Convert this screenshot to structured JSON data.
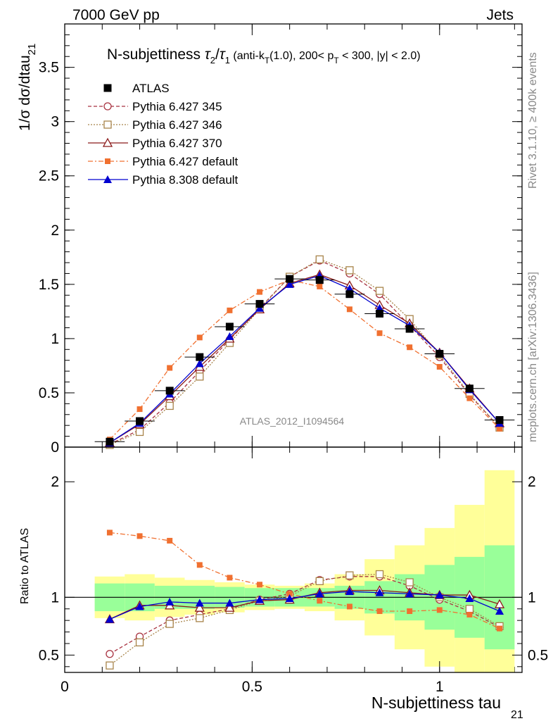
{
  "header": {
    "left": "7000 GeV pp",
    "right": "Jets"
  },
  "side": {
    "rivet": "Rivet 3.1.10, ≥ 400k events",
    "mcplots": "mcplots.cern.ch [arXiv:1306.3436]"
  },
  "watermark": "ATLAS_2012_I1094564",
  "chart_data": {
    "type": "line",
    "title": "N-subjettiness τ₂/τ₁ (anti-k_T(1.0), 200< p_T < 300, |y| < 2.0)",
    "title_main": "N-subjettiness ",
    "title_tau2": "τ",
    "title_sub2": "2",
    "title_slash": "/",
    "title_tau1": "τ",
    "title_sub1": "1",
    "title_rest": " (anti-k",
    "title_subT1": "T",
    "title_rest2": "(1.0), 200< p",
    "title_subT2": "T",
    "title_rest3": " < 300, |y| < 2.0)",
    "ylabel_main": "1/σ dσ/dtau",
    "ylabel_sub": "21",
    "ratio_ylabel": "Ratio to ATLAS",
    "xlabel_main": "N-subjettiness tau",
    "xlabel_sub": "21",
    "xlim": [
      0,
      1.22
    ],
    "ylim": [
      0,
      3.9
    ],
    "ratio_ylim": [
      0.35,
      2.3
    ],
    "x_ticks": [
      "0",
      "0.5",
      "1"
    ],
    "y_ticks": [
      "0",
      "0.5",
      "1",
      "1.5",
      "2",
      "2.5",
      "3",
      "3.5"
    ],
    "ratio_y_ticks": [
      "0.5",
      "1",
      "2"
    ],
    "legend_position": "top-left",
    "x": [
      0.12,
      0.2,
      0.28,
      0.36,
      0.44,
      0.52,
      0.6,
      0.68,
      0.76,
      0.84,
      0.92,
      1.0,
      1.08,
      1.16
    ],
    "data": {
      "name": "ATLAS",
      "values": [
        0.05,
        0.24,
        0.52,
        0.83,
        1.11,
        1.32,
        1.55,
        1.54,
        1.41,
        1.23,
        1.09,
        0.86,
        0.54,
        0.25
      ],
      "band_inner": [
        0.12,
        0.12,
        0.1,
        0.1,
        0.09,
        0.08,
        0.08,
        0.08,
        0.1,
        0.14,
        0.2,
        0.28,
        0.35,
        0.45
      ],
      "band_outer": [
        0.18,
        0.2,
        0.17,
        0.15,
        0.13,
        0.11,
        0.1,
        0.12,
        0.2,
        0.33,
        0.45,
        0.6,
        0.8,
        1.1
      ]
    },
    "series": [
      {
        "name": "Pythia 6.427 345",
        "color": "#a83240",
        "marker": "open-circle",
        "dash": "5,3",
        "values": [
          0.026,
          0.16,
          0.41,
          0.7,
          0.99,
          1.28,
          1.57,
          1.72,
          1.6,
          1.41,
          1.12,
          0.83,
          0.48,
          0.18
        ],
        "ratio": [
          0.51,
          0.66,
          0.8,
          0.85,
          0.9,
          0.98,
          1.03,
          1.15,
          1.18,
          1.18,
          1.1,
          0.98,
          0.88,
          0.74
        ]
      },
      {
        "name": "Pythia 6.427 346",
        "color": "#a8844a",
        "marker": "open-square",
        "dash": "2,2",
        "values": [
          0.02,
          0.14,
          0.38,
          0.65,
          0.96,
          1.27,
          1.57,
          1.73,
          1.63,
          1.44,
          1.18,
          0.85,
          0.49,
          0.18
        ],
        "ratio": [
          0.41,
          0.61,
          0.77,
          0.82,
          0.89,
          0.97,
          1.01,
          1.14,
          1.19,
          1.2,
          1.13,
          1.0,
          0.9,
          0.75
        ]
      },
      {
        "name": "Pythia 6.427 370",
        "color": "#8b1a1a",
        "marker": "open-triangle",
        "dash": "",
        "values": [
          0.04,
          0.21,
          0.47,
          0.74,
          1.0,
          1.27,
          1.51,
          1.59,
          1.49,
          1.31,
          1.14,
          0.87,
          0.54,
          0.22
        ],
        "ratio": [
          0.81,
          0.93,
          0.93,
          0.91,
          0.91,
          0.97,
          0.98,
          1.04,
          1.06,
          1.06,
          1.04,
          1.02,
          1.02,
          0.94
        ]
      },
      {
        "name": "Pythia 6.427 default",
        "color": "#f07030",
        "marker": "filled-square",
        "dash": "7,3,2,3",
        "values": [
          0.07,
          0.35,
          0.73,
          1.01,
          1.26,
          1.43,
          1.54,
          1.48,
          1.27,
          1.05,
          0.92,
          0.74,
          0.45,
          0.17
        ],
        "ratio": [
          1.56,
          1.53,
          1.49,
          1.28,
          1.17,
          1.11,
          1.03,
          0.97,
          0.92,
          0.88,
          0.88,
          0.89,
          0.85,
          0.73
        ]
      },
      {
        "name": "Pythia 8.308 default",
        "color": "#0000d0",
        "marker": "filled-triangle",
        "dash": "",
        "values": [
          0.04,
          0.22,
          0.49,
          0.77,
          1.02,
          1.28,
          1.5,
          1.58,
          1.46,
          1.28,
          1.12,
          0.87,
          0.53,
          0.22
        ],
        "ratio": [
          0.81,
          0.92,
          0.96,
          0.95,
          0.95,
          0.98,
          0.99,
          1.03,
          1.05,
          1.04,
          1.03,
          1.02,
          0.99,
          0.88
        ]
      }
    ]
  }
}
